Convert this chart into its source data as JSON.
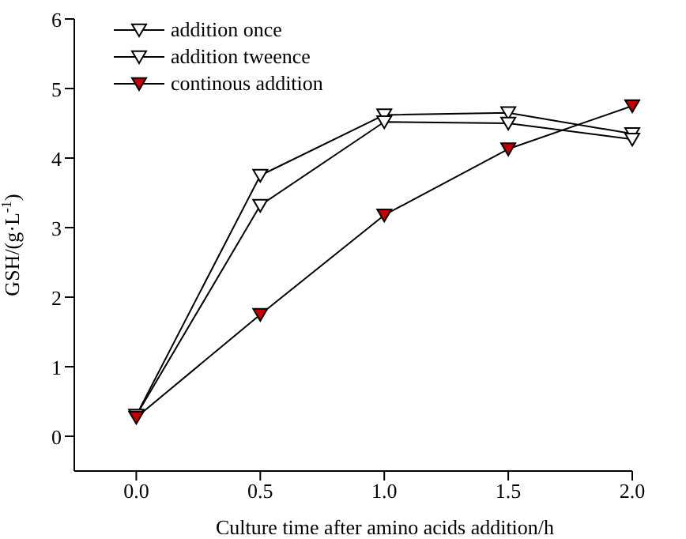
{
  "chart_data": {
    "type": "line",
    "xlabel": "Culture time after amino acids addition/h",
    "ylabel": "GSH/(g·L$^{-1}$)",
    "x": [
      0,
      0.5,
      1.0,
      1.5,
      2.0
    ],
    "xlim": [
      -0.25,
      2.0
    ],
    "xticks": [
      {
        "value": 0,
        "label": "0.0"
      },
      {
        "value": 0.5,
        "label": "0.5"
      },
      {
        "value": 1,
        "label": "1.0"
      },
      {
        "value": 1.5,
        "label": "1.5"
      },
      {
        "value": 2,
        "label": "2.0"
      }
    ],
    "ylim": [
      -0.5,
      6
    ],
    "yticks": [
      0,
      1,
      2,
      3,
      4,
      5,
      6
    ],
    "grid": false,
    "legend": "top left",
    "marker": "triangle",
    "line_style": "solid",
    "series": [
      {
        "name": "addition once",
        "color": "#ffffff",
        "values": [
          0.3,
          3.75,
          4.62,
          4.65,
          4.35
        ]
      },
      {
        "name": "addition tweence",
        "color": "#ffffff",
        "values": [
          0.3,
          3.32,
          4.52,
          4.5,
          4.27
        ]
      },
      {
        "name": "continous addition",
        "color": "#c00000",
        "values": [
          0.27,
          1.75,
          3.18,
          4.13,
          4.75
        ]
      }
    ]
  }
}
